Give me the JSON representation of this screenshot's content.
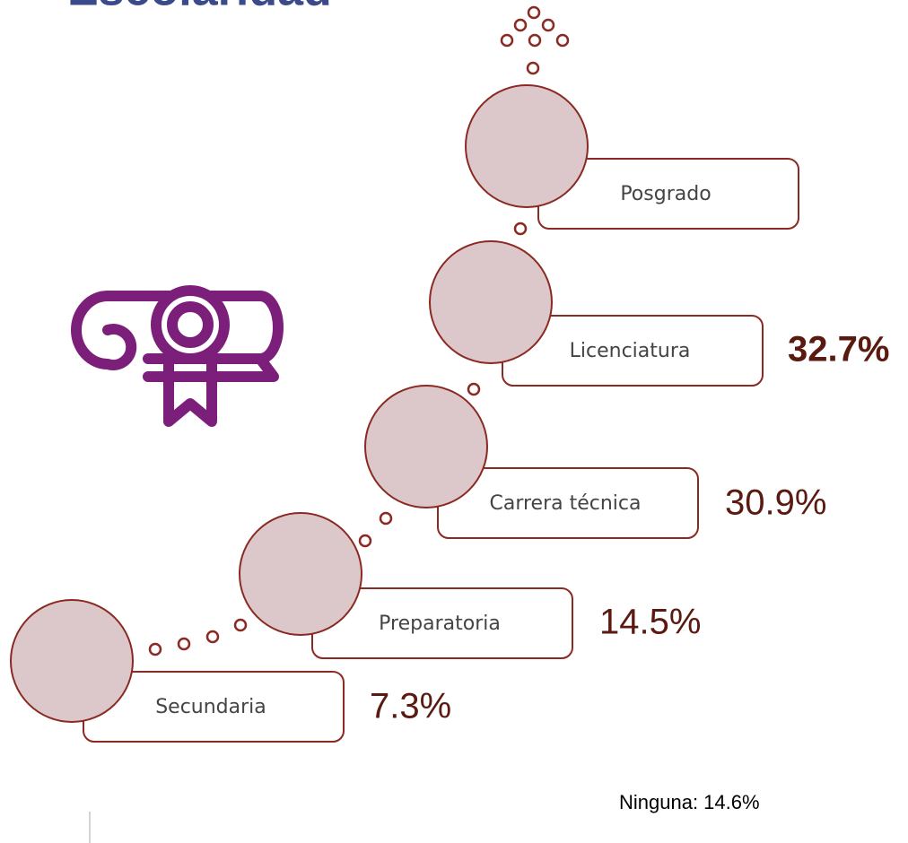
{
  "title": "Escolaridad",
  "levels": [
    {
      "label": "Posgrado"
    },
    {
      "label": "Licenciatura",
      "value": "32.7%"
    },
    {
      "label": "Carrera técnica",
      "value": "30.9%"
    },
    {
      "label": "Preparatoria",
      "value": "14.5%"
    },
    {
      "label": "Secundaria",
      "value": "7.3%"
    }
  ],
  "note": "Ninguna: 14.6%"
}
